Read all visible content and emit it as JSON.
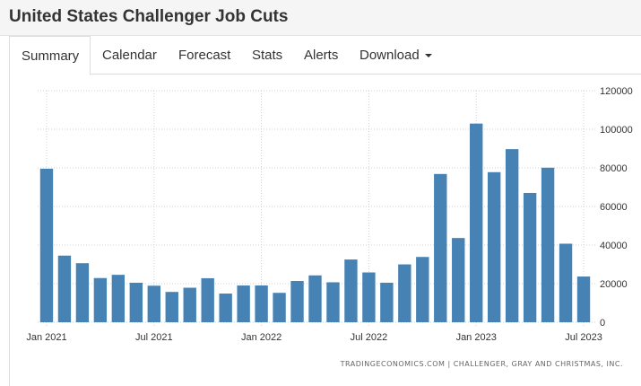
{
  "header": {
    "title": "United States Challenger Job Cuts"
  },
  "tabs": [
    {
      "label": "Summary",
      "active": true
    },
    {
      "label": "Calendar"
    },
    {
      "label": "Forecast"
    },
    {
      "label": "Stats"
    },
    {
      "label": "Alerts"
    },
    {
      "label": "Download",
      "has_dropdown": true
    }
  ],
  "credit": "TRADINGECONOMICS.COM | CHALLENGER, GRAY AND CHRISTMAS, INC.",
  "colors": {
    "bar": "#4682b4",
    "grid": "#d0d0d0"
  },
  "chart_data": {
    "type": "bar",
    "title": "",
    "xlabel": "",
    "ylabel": "",
    "x_tick_labels": [
      "Jan 2021",
      "Jul 2021",
      "Jan 2022",
      "Jul 2022",
      "Jan 2023",
      "Jul 2023"
    ],
    "x_tick_indices": [
      0,
      6,
      12,
      18,
      24,
      30
    ],
    "y_ticks": [
      0,
      20000,
      40000,
      60000,
      80000,
      100000,
      120000
    ],
    "ylim": [
      0,
      120000
    ],
    "y_axis_side": "right",
    "grid": true,
    "categories": [
      "2021-01",
      "2021-02",
      "2021-03",
      "2021-04",
      "2021-05",
      "2021-06",
      "2021-07",
      "2021-08",
      "2021-09",
      "2021-10",
      "2021-11",
      "2021-12",
      "2022-01",
      "2022-02",
      "2022-03",
      "2022-04",
      "2022-05",
      "2022-06",
      "2022-07",
      "2022-08",
      "2022-09",
      "2022-10",
      "2022-11",
      "2022-12",
      "2023-01",
      "2023-02",
      "2023-03",
      "2023-04",
      "2023-05",
      "2023-06",
      "2023-07"
    ],
    "values": [
      79552,
      34531,
      30603,
      22913,
      24586,
      20476,
      18942,
      15723,
      17895,
      22822,
      14875,
      19052,
      19064,
      15245,
      21387,
      24286,
      20712,
      32517,
      25810,
      20485,
      29989,
      33843,
      76835,
      43651,
      102943,
      77770,
      89703,
      66995,
      80089,
      40709,
      23697
    ]
  }
}
